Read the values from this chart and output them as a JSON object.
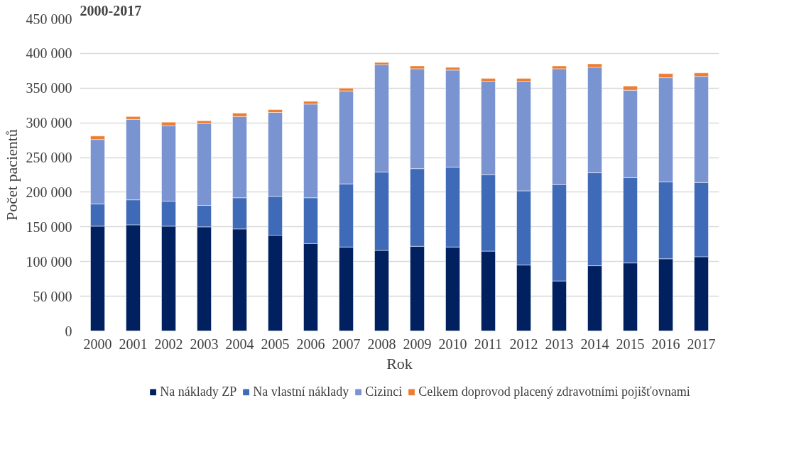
{
  "chart_data": {
    "type": "bar",
    "stacked": true,
    "title": "2000-2017",
    "xlabel": "Rok",
    "ylabel": "Počet pacientů",
    "categories": [
      "2000",
      "2001",
      "2002",
      "2003",
      "2004",
      "2005",
      "2006",
      "2007",
      "2008",
      "2009",
      "2010",
      "2011",
      "2012",
      "2013",
      "2014",
      "2015",
      "2016",
      "2017"
    ],
    "series": [
      {
        "name": "Na náklady ZP",
        "color": "#002060",
        "values": [
          151000,
          153000,
          151000,
          150000,
          147000,
          138000,
          126000,
          121000,
          116000,
          122000,
          121000,
          115000,
          95000,
          72000,
          94000,
          98000,
          104000,
          107000
        ]
      },
      {
        "name": "Na vlastní náklady",
        "color": "#3e6ab7",
        "values": [
          32000,
          36000,
          36000,
          31000,
          45000,
          56000,
          66000,
          91000,
          113000,
          112000,
          115000,
          110000,
          107000,
          139000,
          134000,
          123000,
          111000,
          107000
        ]
      },
      {
        "name": "Cizinci",
        "color": "#7a93d1",
        "values": [
          93000,
          116000,
          109000,
          118000,
          117000,
          121000,
          135000,
          134000,
          155000,
          144000,
          140000,
          135000,
          158000,
          167000,
          152000,
          126000,
          150000,
          153000
        ]
      },
      {
        "name": "Celkem doprovod placený zdravotními pojišťovnami",
        "color": "#ed7d31",
        "values": [
          5000,
          4000,
          5000,
          4000,
          5000,
          4000,
          4000,
          4000,
          3000,
          4000,
          4000,
          4000,
          4000,
          4000,
          5000,
          6000,
          6000,
          5000
        ]
      }
    ],
    "ylim": [
      0,
      450000
    ],
    "yticks": [
      {
        "value": 0,
        "label": "0"
      },
      {
        "value": 50000,
        "label": "50 000"
      },
      {
        "value": 100000,
        "label": "100 000"
      },
      {
        "value": 150000,
        "label": "150 000"
      },
      {
        "value": 200000,
        "label": "200 000"
      },
      {
        "value": 250000,
        "label": "250 000"
      },
      {
        "value": 300000,
        "label": "300 000"
      },
      {
        "value": 350000,
        "label": "350 000"
      },
      {
        "value": 400000,
        "label": "400 000"
      },
      {
        "value": 450000,
        "label": "450 000"
      }
    ],
    "grid": "y",
    "legend": "bottom"
  }
}
